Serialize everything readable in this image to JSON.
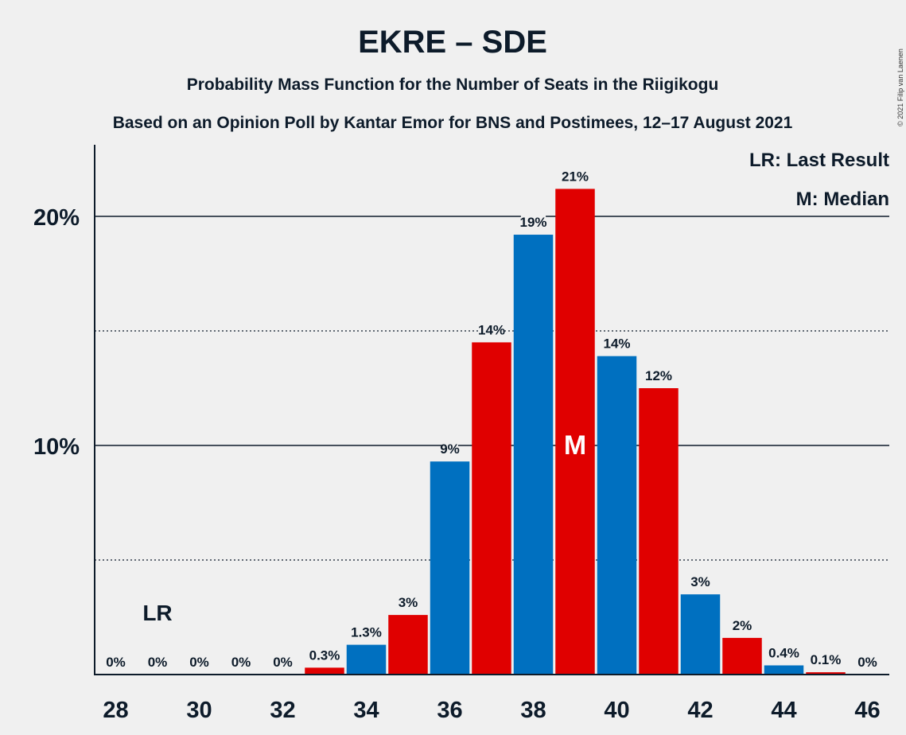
{
  "header": {
    "title": "EKRE – SDE",
    "subtitle1": "Probability Mass Function for the Number of Seats in the Riigikogu",
    "subtitle2": "Based on an Opinion Poll by Kantar Emor for BNS and Postimees, 12–17 August 2021"
  },
  "copyright": "© 2021 Filip van Laenen",
  "legend": {
    "last_result": "LR: Last Result",
    "median": "M: Median"
  },
  "markers": {
    "last_result_label": "LR",
    "median_label": "M"
  },
  "colors": {
    "blue": "#0070c0",
    "red": "#e00000",
    "background": "#f0f0f0",
    "text": "#0d1b2a"
  },
  "chart_data": {
    "type": "bar",
    "x": [
      28,
      29,
      30,
      31,
      32,
      33,
      34,
      35,
      36,
      37,
      38,
      39,
      40,
      41,
      42,
      43,
      44,
      45,
      46
    ],
    "values": [
      0,
      0,
      0,
      0,
      0,
      0.3,
      1.3,
      2.6,
      9.3,
      14.5,
      19.2,
      21.2,
      13.9,
      12.5,
      3.5,
      1.6,
      0.4,
      0.1,
      0
    ],
    "labels": [
      "0%",
      "0%",
      "0%",
      "0%",
      "0%",
      "0.3%",
      "1.3%",
      "3%",
      "9%",
      "14%",
      "19%",
      "21%",
      "14%",
      "12%",
      "3%",
      "2%",
      "0.4%",
      "0.1%",
      "0%"
    ],
    "bar_colors": [
      "blue",
      "red",
      "blue",
      "red",
      "blue",
      "red",
      "blue",
      "red",
      "blue",
      "red",
      "blue",
      "red",
      "blue",
      "red",
      "blue",
      "red",
      "blue",
      "red",
      "blue"
    ],
    "x_tick_labels": [
      "28",
      "30",
      "32",
      "34",
      "36",
      "38",
      "40",
      "42",
      "44",
      "46"
    ],
    "y_ticks": [
      {
        "value": 10,
        "label": "10%"
      },
      {
        "value": 20,
        "label": "20%"
      }
    ],
    "y_dotted_gridlines": [
      5,
      15
    ],
    "ylim": [
      0,
      23
    ],
    "last_result_seat": 29,
    "median_seat": 39
  }
}
